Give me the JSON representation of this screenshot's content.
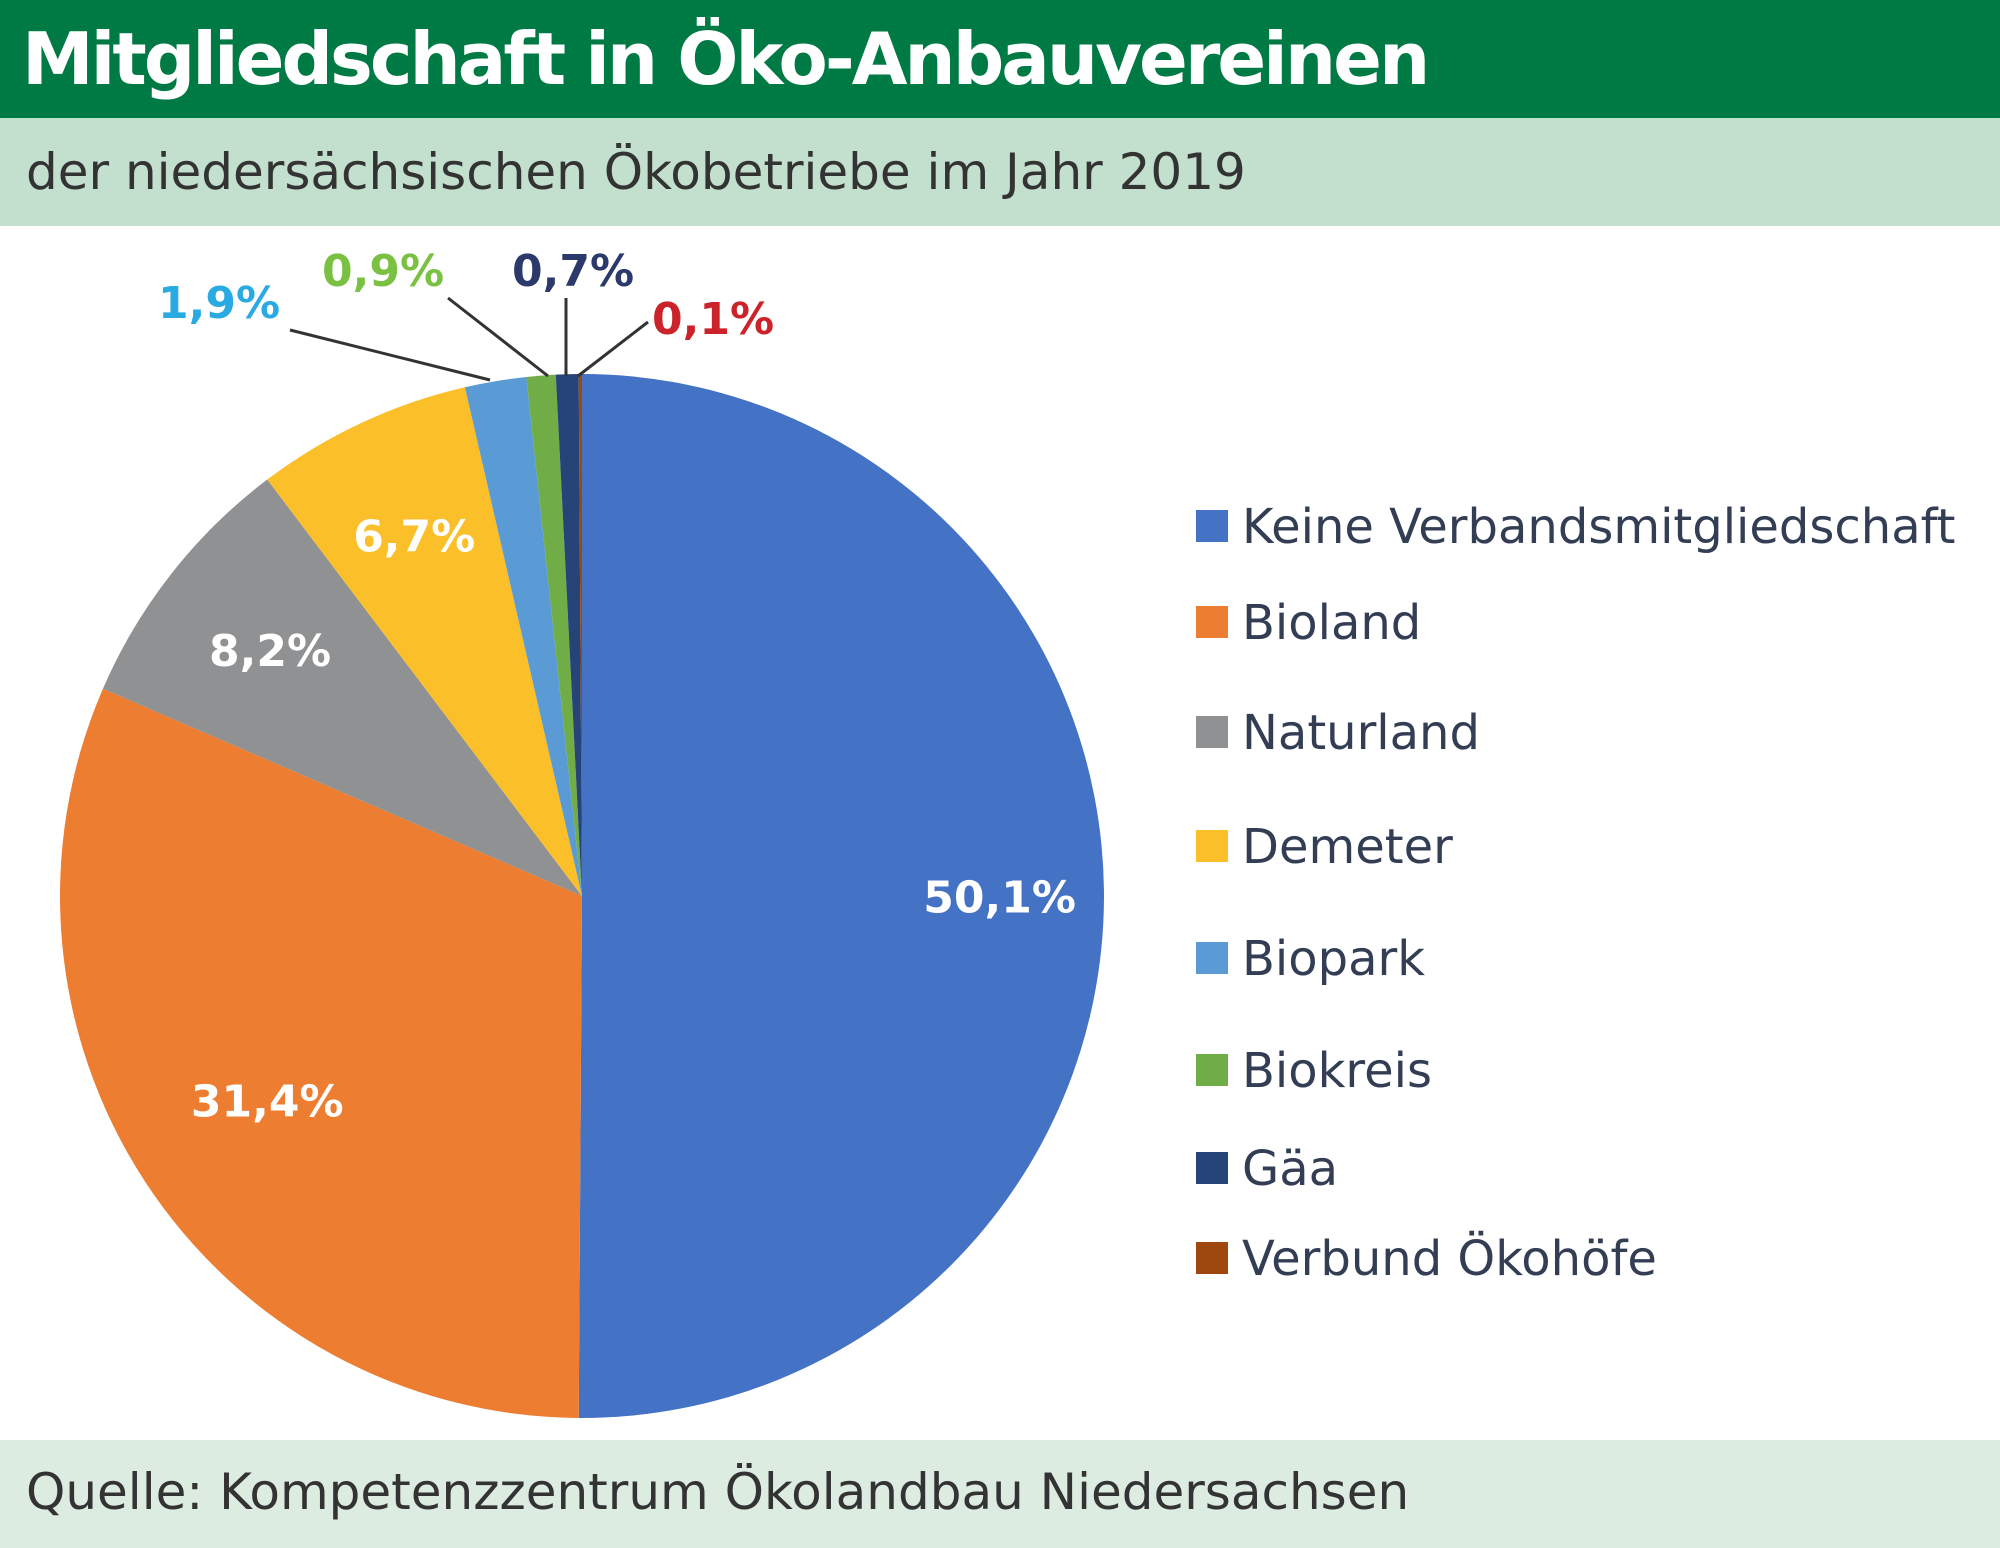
{
  "header": {
    "title": "Mitgliedschaft in Öko-Anbauvereinen",
    "subtitle": "der niedersächsischen Ökobetriebe im Jahr 2019"
  },
  "footer": {
    "source": "Quelle: Kompetenzzentrum Ökolandbau Niedersachsen"
  },
  "colors": {
    "title_bar": "#007a45",
    "subtitle_bar": "#c3dfcd",
    "footer_bar": "#dcece1"
  },
  "chart_data": {
    "type": "pie",
    "title": "Mitgliedschaft in Öko-Anbauvereinen",
    "subtitle": "der niedersächsischen Ökobetriebe im Jahr 2019",
    "unit": "%",
    "start": "12 o'clock, clockwise",
    "legend_position": "right",
    "slices": [
      {
        "name": "Keine Verbandsmitgliedschaft",
        "value": 50.1,
        "label": "50,1%",
        "color": "#4472c4",
        "label_color": "#ffffff"
      },
      {
        "name": "Bioland",
        "value": 31.4,
        "label": "31,4%",
        "color": "#ed7d31",
        "label_color": "#ffffff"
      },
      {
        "name": "Naturland",
        "value": 8.2,
        "label": "8,2%",
        "color": "#8f9192",
        "label_color": "#ffffff"
      },
      {
        "name": "Demeter",
        "value": 6.7,
        "label": "6,7%",
        "color": "#fbbf2a",
        "label_color": "#ffffff"
      },
      {
        "name": "Biopark",
        "value": 1.9,
        "label": "1,9%",
        "color": "#5b9bd5",
        "label_color": "#29aae2"
      },
      {
        "name": "Biokreis",
        "value": 0.9,
        "label": "0,9%",
        "color": "#70ad47",
        "label_color": "#7ac143"
      },
      {
        "name": "Gäa",
        "value": 0.7,
        "label": "0,7%",
        "color": "#264478",
        "label_color": "#2b3a6b"
      },
      {
        "name": "Verbund Ökohöfe",
        "value": 0.1,
        "label": "0,1%",
        "color": "#9e480e",
        "label_color": "#cc2229"
      }
    ]
  }
}
